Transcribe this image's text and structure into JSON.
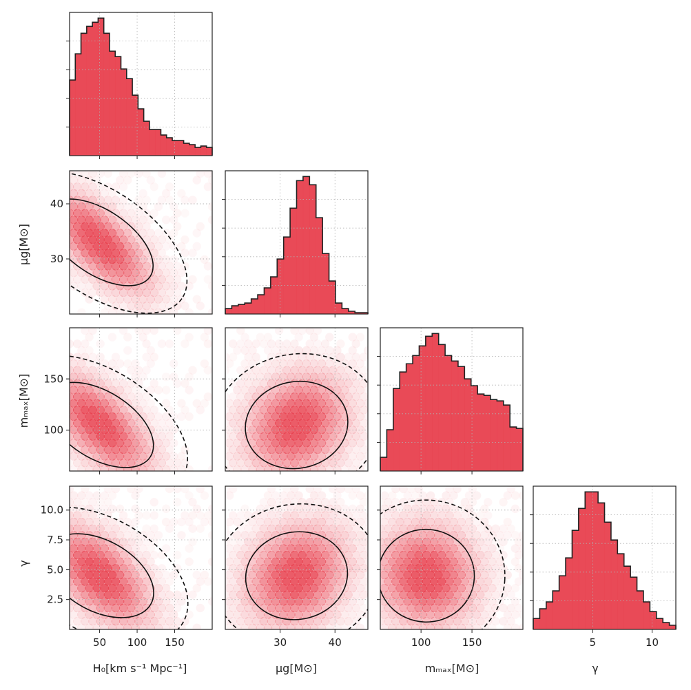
{
  "chart_data": {
    "type": "corner",
    "parameters": [
      {
        "key": "H0",
        "label": "H₀[km s⁻¹ Mpc⁻¹]",
        "lim": [
          10,
          200
        ],
        "ticks": [
          50,
          100,
          150
        ],
        "tick_labels": [
          "50",
          "100",
          "150"
        ],
        "peak": 50
      },
      {
        "key": "mu_g",
        "label": "μg[M⊙]",
        "lim": [
          20,
          46
        ],
        "ticks": [
          30,
          40
        ],
        "tick_labels": [
          "30",
          "40"
        ],
        "peak": 33
      },
      {
        "key": "m_max",
        "label": "mₘₐₓ[M⊙]",
        "lim": [
          60,
          200
        ],
        "ticks": [
          100,
          150
        ],
        "tick_labels": [
          "100",
          "150"
        ],
        "peak": 105
      },
      {
        "key": "gamma",
        "label": "γ",
        "lim": [
          0,
          12
        ],
        "ticks": [
          5,
          10
        ],
        "tick_labels": [
          "5",
          "10"
        ],
        "peak": 4.5
      }
    ],
    "y_tick_labels": {
      "mu_g": {
        "ticks": [
          30,
          40
        ],
        "labels": [
          "30",
          "40"
        ]
      },
      "m_max": {
        "ticks": [
          100,
          150
        ],
        "labels": [
          "100",
          "150"
        ]
      },
      "gamma": {
        "ticks": [
          2.5,
          5.0,
          7.5,
          10.0
        ],
        "labels": [
          "2.5",
          "5.0",
          "7.5",
          "10.0"
        ]
      }
    },
    "histograms": {
      "H0": [
        0.55,
        0.74,
        0.89,
        0.94,
        0.97,
        1.0,
        0.89,
        0.76,
        0.72,
        0.63,
        0.56,
        0.44,
        0.34,
        0.25,
        0.19,
        0.19,
        0.15,
        0.13,
        0.11,
        0.11,
        0.09,
        0.08,
        0.06,
        0.07,
        0.06
      ],
      "mu_g": [
        0.04,
        0.06,
        0.07,
        0.08,
        0.11,
        0.14,
        0.19,
        0.27,
        0.4,
        0.56,
        0.77,
        0.97,
        1.0,
        0.94,
        0.7,
        0.44,
        0.24,
        0.08,
        0.04,
        0.02,
        0.01,
        0.01
      ],
      "m_max": [
        0.1,
        0.3,
        0.6,
        0.72,
        0.78,
        0.84,
        0.91,
        0.98,
        1.0,
        0.92,
        0.84,
        0.8,
        0.76,
        0.67,
        0.62,
        0.56,
        0.55,
        0.52,
        0.51,
        0.48,
        0.32,
        0.31
      ],
      "gamma": [
        0.08,
        0.15,
        0.2,
        0.28,
        0.39,
        0.52,
        0.72,
        0.88,
        1.0,
        1.0,
        0.92,
        0.78,
        0.65,
        0.55,
        0.46,
        0.38,
        0.28,
        0.2,
        0.13,
        0.08,
        0.05,
        0.03
      ]
    },
    "pair_correlations": {
      "mu_g|H0": -0.68,
      "m_max|H0": -0.62,
      "gamma|H0": -0.55,
      "m_max|mu_g": 0.2,
      "gamma|mu_g": 0.18,
      "gamma|m_max": -0.05
    },
    "contour_levels": [
      "solid inner (~68%)",
      "dashed outer (~95%)"
    ],
    "color": "#e8404e",
    "edge_color": "#222222",
    "grid": true
  }
}
